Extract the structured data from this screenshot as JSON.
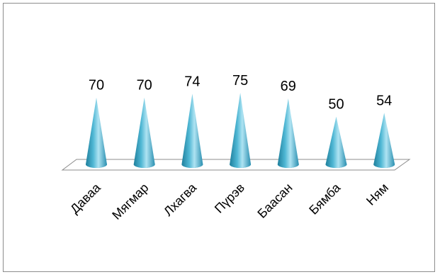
{
  "chart_data": {
    "type": "bar",
    "bar_shape": "cone",
    "categories": [
      "Даваа",
      "Мягмар",
      "Лхагва",
      "Пүрэв",
      "Баасан",
      "Бямба",
      "Ням"
    ],
    "values": [
      70,
      70,
      74,
      75,
      69,
      50,
      54
    ],
    "data_labels": [
      "70",
      "70",
      "74",
      "75",
      "69",
      "50",
      "54"
    ],
    "title": "",
    "xlabel": "",
    "ylabel": "",
    "ylim": [
      0,
      80
    ],
    "grid": false,
    "legend": "none",
    "colors": {
      "cone_light": "#aee3f2",
      "cone_mid": "#4fb7d4",
      "cone_dark": "#1f7f9c",
      "floor_stroke": "#8c8c8c",
      "frame_stroke": "#8c8c8c"
    }
  }
}
